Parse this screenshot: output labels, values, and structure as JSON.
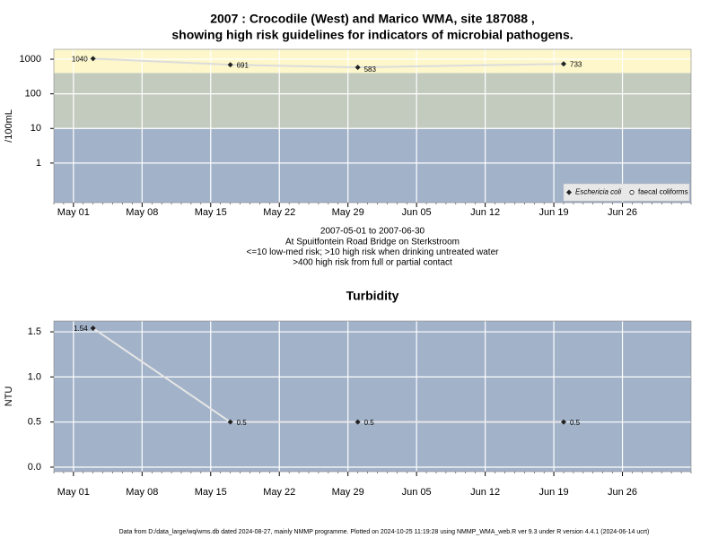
{
  "chart_data": [
    {
      "type": "line",
      "title": [
        "2007 : Crocodile (West) and Marico WMA, site 187088 ,",
        "showing high risk guidelines for indicators of microbial pathogens."
      ],
      "ylabel": "/100mL",
      "log_y": true,
      "ylim": [
        0.072,
        1930
      ],
      "yticks": [
        1,
        10,
        100,
        1000
      ],
      "xlim": [
        "2007-04-29",
        "2007-07-03"
      ],
      "xticks": [
        {
          "value": "2007-05-01",
          "label": "May 01"
        },
        {
          "value": "2007-05-08",
          "label": "May 08"
        },
        {
          "value": "2007-05-15",
          "label": "May 15"
        },
        {
          "value": "2007-05-22",
          "label": "May 22"
        },
        {
          "value": "2007-05-29",
          "label": "May 29"
        },
        {
          "value": "2007-06-05",
          "label": "Jun 05"
        },
        {
          "value": "2007-06-12",
          "label": "Jun 12"
        },
        {
          "value": "2007-06-19",
          "label": "Jun 19"
        },
        {
          "value": "2007-06-26",
          "label": "Jun 26"
        }
      ],
      "x": [
        "2007-05-03",
        "2007-05-17",
        "2007-05-30",
        "2007-06-20"
      ],
      "thresholds": [
        10,
        400
      ],
      "band_colors": [
        "#a2b2c9",
        "#c3cbbf",
        "#fdf7cb"
      ],
      "grid": true,
      "line_color": "#dcdcdc",
      "series": [
        {
          "name": "Eschericia coli",
          "color": "#222222",
          "marker": "diamond",
          "values": [
            1040,
            691,
            583,
            733
          ]
        },
        {
          "name": "faecal coliforms",
          "color": "#222222",
          "marker": "circle",
          "values": [
            null,
            null,
            null,
            null
          ]
        }
      ],
      "legend": "lower right",
      "notes": [
        "2007-05-01 to 2007-06-30",
        "At Spuitfontein Road Bridge on Sterkstroom",
        "<=10 low-med risk; >10 high risk when drinking untreated water",
        ">400 high risk from full or partial contact"
      ]
    },
    {
      "type": "line",
      "title": [
        "Turbidity"
      ],
      "ylabel": "NTU",
      "ylim": [
        -0.05,
        1.62
      ],
      "yticks": [
        {
          "value": 0,
          "label": "0.0"
        },
        0.5,
        {
          "value": 1,
          "label": "1.0"
        },
        1.5
      ],
      "xlim": [
        "2007-04-29",
        "2007-07-03"
      ],
      "xticks": [
        {
          "value": "2007-05-01",
          "label": "May 01"
        },
        {
          "value": "2007-05-08",
          "label": "May 08"
        },
        {
          "value": "2007-05-15",
          "label": "May 15"
        },
        {
          "value": "2007-05-22",
          "label": "May 22"
        },
        {
          "value": "2007-05-29",
          "label": "May 29"
        },
        {
          "value": "2007-06-05",
          "label": "Jun 05"
        },
        {
          "value": "2007-06-12",
          "label": "Jun 12"
        },
        {
          "value": "2007-06-19",
          "label": "Jun 19"
        },
        {
          "value": "2007-06-26",
          "label": "Jun 26"
        }
      ],
      "x": [
        "2007-05-03",
        "2007-05-17",
        "2007-05-30",
        "2007-06-20"
      ],
      "background": "#a2b2c9",
      "grid": true,
      "line_color": "#e6e6e6",
      "series": [
        {
          "name": "Turbidity",
          "color": "#222222",
          "marker": "diamond",
          "values": [
            1.54,
            0.5,
            0.5,
            0.5
          ]
        }
      ]
    }
  ],
  "footer": "Data from D:/data_large/wq/wms.db dated 2024-08-27, mainly NMMP programme. Plotted on 2024-10-25 11:19:28 using NMMP_WMA_web.R ver 9.3 under R version 4.4.1 (2024-06-14 ucrt)"
}
